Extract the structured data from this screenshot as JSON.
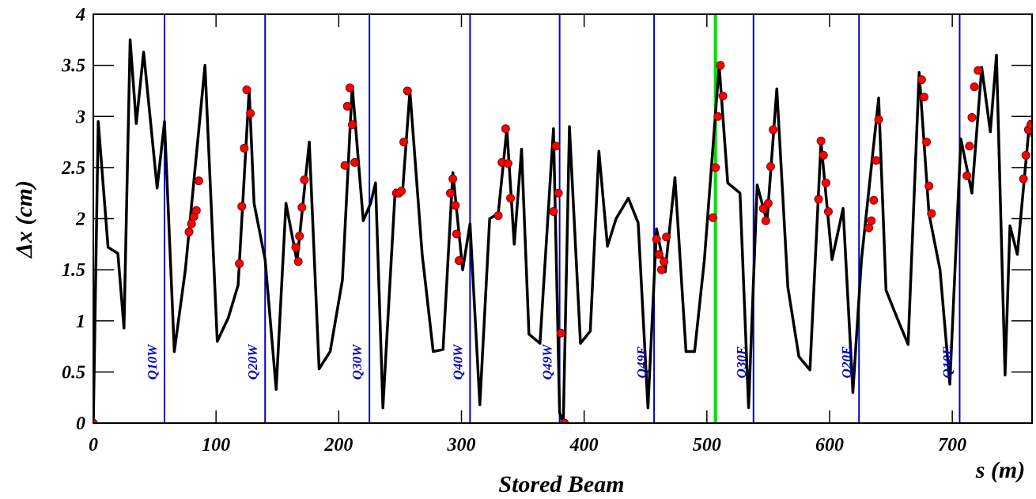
{
  "chart_data": {
    "type": "line",
    "title": "Stored Beam",
    "x_label": "s (m)",
    "y_label": "Δx (cm)",
    "xlim": [
      0,
      765
    ],
    "ylim": [
      0,
      4
    ],
    "xticks": [
      0,
      100,
      200,
      300,
      400,
      500,
      600,
      700
    ],
    "yticks": [
      0,
      0.5,
      1,
      1.5,
      2,
      2.5,
      3,
      3.5,
      4
    ],
    "series": [
      {
        "color": "#000000",
        "type": "line",
        "x": [
          0,
          4,
          12,
          20,
          25,
          30,
          35,
          41,
          52,
          58,
          66,
          75,
          91,
          101,
          110,
          118,
          127,
          131,
          140,
          149,
          157,
          166,
          176,
          184,
          193,
          203,
          211,
          220,
          226,
          230,
          236,
          246,
          252,
          258,
          268,
          277,
          285,
          293,
          301,
          307,
          315,
          323,
          330,
          337,
          343,
          349,
          355,
          364,
          375,
          380,
          383,
          388,
          397,
          405,
          412,
          419,
          426,
          436,
          444,
          452,
          459,
          466,
          474,
          483,
          490,
          498,
          510,
          517,
          527,
          534,
          541,
          549,
          557,
          566,
          575,
          584,
          593,
          602,
          611,
          619,
          626,
          640,
          646,
          656,
          664,
          673,
          681,
          690,
          698,
          707,
          716,
          724,
          731,
          736,
          743,
          747,
          753,
          763,
          765
        ],
        "values": [
          0,
          2.95,
          1.72,
          1.66,
          0.93,
          3.75,
          2.93,
          3.63,
          2.3,
          2.95,
          0.7,
          1.5,
          3.5,
          0.8,
          1.03,
          1.35,
          3.26,
          2.15,
          1.6,
          0.33,
          2.15,
          1.58,
          2.75,
          0.53,
          0.7,
          1.4,
          3.3,
          1.98,
          2.15,
          2.35,
          0.15,
          2.28,
          2.26,
          3.25,
          1.65,
          0.7,
          0.72,
          2.45,
          1.5,
          1.95,
          0.18,
          2.0,
          2.05,
          2.88,
          1.75,
          2.68,
          0.87,
          0.78,
          2.88,
          0.1,
          0,
          2.9,
          0.78,
          0.9,
          2.66,
          1.73,
          2.0,
          2.2,
          1.96,
          0.15,
          1.9,
          1.48,
          2.4,
          0.7,
          0.7,
          1.6,
          3.5,
          2.35,
          2.25,
          0.15,
          2.33,
          1.97,
          3.27,
          1.33,
          0.65,
          0.52,
          2.75,
          1.6,
          2.1,
          0.3,
          1.6,
          3.18,
          1.3,
          1.0,
          0.77,
          3.43,
          2.05,
          1.5,
          0.38,
          2.78,
          2.25,
          3.48,
          2.85,
          3.6,
          0.47,
          1.93,
          1.65,
          2.95,
          2.8
        ]
      },
      {
        "color": "#ff0000",
        "type": "scatter",
        "x": [
          0,
          78,
          80,
          82,
          84,
          86,
          119,
          121,
          123,
          125,
          128,
          165,
          167,
          168,
          170,
          172,
          205,
          207,
          209,
          211,
          213,
          247,
          249,
          251,
          253,
          256,
          291,
          293,
          295,
          296,
          298,
          330,
          333,
          336,
          338,
          340,
          375,
          377,
          379,
          381,
          384,
          459,
          461,
          463,
          465,
          467,
          505,
          507,
          509,
          511,
          513,
          546,
          548,
          550,
          552,
          554,
          591,
          593,
          595,
          597,
          599,
          632,
          634,
          636,
          638,
          640,
          675,
          677,
          679,
          681,
          683,
          712,
          714,
          716,
          718,
          721,
          758,
          760,
          762,
          764
        ],
        "values": [
          0,
          1.87,
          1.95,
          2.02,
          2.08,
          2.37,
          1.56,
          2.12,
          2.69,
          3.26,
          3.03,
          1.72,
          1.58,
          1.83,
          2.11,
          2.38,
          2.52,
          3.1,
          3.28,
          2.92,
          2.55,
          2.25,
          2.25,
          2.27,
          2.75,
          3.25,
          2.25,
          2.39,
          2.13,
          1.85,
          1.59,
          2.03,
          2.55,
          2.88,
          2.54,
          2.2,
          2.07,
          2.71,
          2.25,
          0.88,
          0,
          1.8,
          1.65,
          1.5,
          1.58,
          1.82,
          2.01,
          2.5,
          3.0,
          3.5,
          3.2,
          2.1,
          1.98,
          2.15,
          2.51,
          2.87,
          2.19,
          2.76,
          2.62,
          2.35,
          2.07,
          1.91,
          1.98,
          2.18,
          2.57,
          2.97,
          3.36,
          3.19,
          2.75,
          2.32,
          2.05,
          2.42,
          2.71,
          2.99,
          3.29,
          3.45,
          2.39,
          2.62,
          2.87,
          2.92
        ]
      }
    ],
    "markers": [
      {
        "label": "Q10W",
        "x": 58,
        "color": "#0000cc"
      },
      {
        "label": "Q20W",
        "x": 140,
        "color": "#0000cc"
      },
      {
        "label": "Q30W",
        "x": 225,
        "color": "#0000cc"
      },
      {
        "label": "Q40W",
        "x": 307,
        "color": "#0000cc"
      },
      {
        "label": "Q49W",
        "x": 380,
        "color": "#0000cc"
      },
      {
        "label": "Q49E",
        "x": 457,
        "color": "#0000cc"
      },
      {
        "label": "Q30E",
        "x": 538,
        "color": "#0000cc"
      },
      {
        "label": "Q20E",
        "x": 624,
        "color": "#0000cc"
      },
      {
        "label": "Q10E",
        "x": 706,
        "color": "#0000cc"
      }
    ],
    "highlight": {
      "x": 507,
      "color": "#00dd00"
    }
  }
}
